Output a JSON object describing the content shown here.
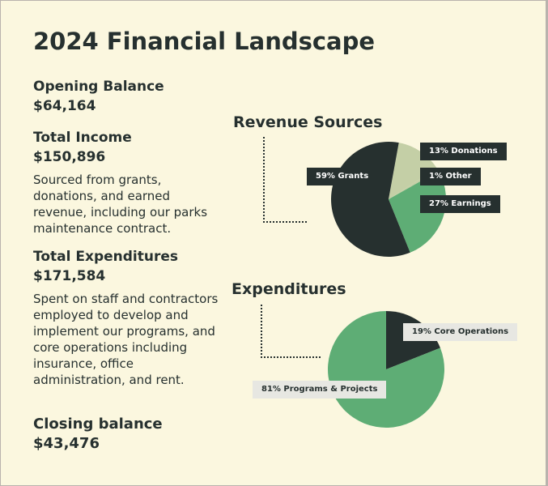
{
  "page": {
    "title": "2024 Financial Landscape"
  },
  "summary": {
    "opening": {
      "label": "Opening Balance",
      "value": "$64,164"
    },
    "income": {
      "label": "Total Income",
      "value": "$150,896",
      "description": "Sourced from grants, donations, and earned revenue, including our parks maintenance contract."
    },
    "expenditures": {
      "label": "Total Expenditures",
      "value": "$171,584",
      "description": "Spent on staff and contractors employed to develop and implement our programs, and core operations including insurance, office administration, and rent."
    },
    "closing": {
      "label": "Closing balance",
      "value": "$43,476"
    }
  },
  "colors": {
    "dark": "#26302f",
    "green": "#5ead75",
    "sage": "#c4cfa6",
    "tag_light": "#e7e7e2",
    "background": "#fbf7df"
  },
  "chart_data": [
    {
      "type": "pie",
      "title": "Revenue Sources",
      "slices": [
        {
          "label": "59% Grants",
          "value": 59,
          "color": "#26302f"
        },
        {
          "label": "13% Donations",
          "value": 13,
          "color": "#c4cfa6"
        },
        {
          "label": "1% Other",
          "value": 1,
          "color": "#c4cfa6"
        },
        {
          "label": "27% Earnings",
          "value": 27,
          "color": "#5ead75"
        }
      ]
    },
    {
      "type": "pie",
      "title": "Expenditures",
      "slices": [
        {
          "label": "19% Core Operations",
          "value": 19,
          "color": "#26302f"
        },
        {
          "label": "81% Programs & Projects",
          "value": 81,
          "color": "#5ead75"
        }
      ]
    }
  ]
}
